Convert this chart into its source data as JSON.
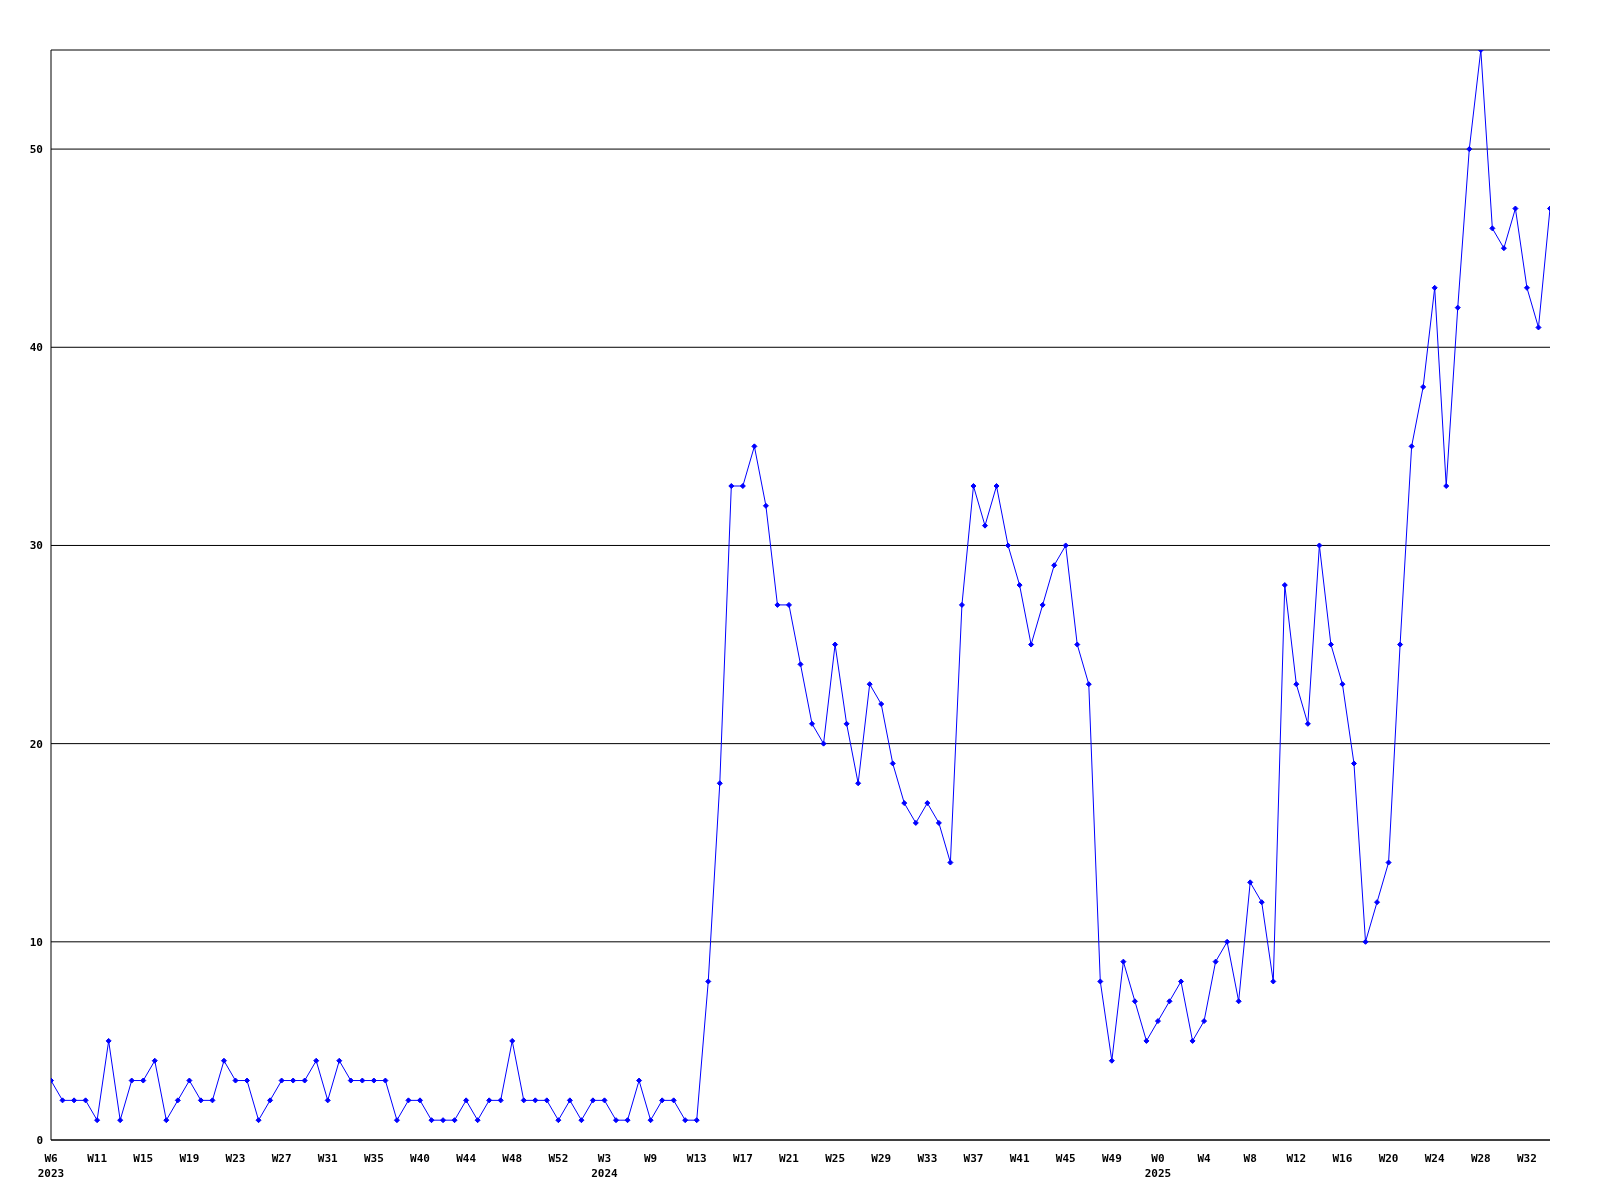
{
  "chart_data": {
    "type": "line",
    "categories": [
      "W6\n2023",
      null,
      null,
      null,
      "W11",
      null,
      null,
      null,
      "W15",
      null,
      null,
      null,
      "W19",
      null,
      null,
      null,
      "W23",
      null,
      null,
      null,
      "W27",
      null,
      null,
      null,
      "W31",
      null,
      null,
      null,
      "W35",
      null,
      null,
      null,
      "W40",
      null,
      null,
      null,
      "W44",
      null,
      null,
      null,
      "W48",
      null,
      null,
      null,
      "W52",
      null,
      null,
      null,
      "W3\n2024",
      null,
      null,
      null,
      "W9",
      null,
      null,
      null,
      "W13",
      null,
      null,
      null,
      "W17",
      null,
      null,
      null,
      "W21",
      null,
      null,
      null,
      "W25",
      null,
      null,
      null,
      "W29",
      null,
      null,
      null,
      "W33",
      null,
      null,
      null,
      "W37",
      null,
      null,
      null,
      "W41",
      null,
      null,
      null,
      "W45",
      null,
      null,
      null,
      "W49",
      null,
      null,
      null,
      "W0\n2025",
      null,
      null,
      null,
      "W4",
      null,
      null,
      null,
      "W8",
      null,
      null,
      null,
      "W12",
      null,
      null,
      null,
      "W16",
      null,
      null,
      null,
      "W20",
      null,
      null,
      null,
      "W24",
      null,
      null,
      null,
      "W28",
      null,
      null,
      null,
      "W32",
      null,
      null
    ],
    "series": [
      {
        "color": "#0000ff",
        "values": [
          3,
          2,
          2,
          2,
          1,
          5,
          1,
          3,
          3,
          4,
          1,
          2,
          3,
          2,
          2,
          4,
          3,
          3,
          1,
          2,
          3,
          3,
          3,
          4,
          2,
          4,
          3,
          3,
          3,
          3,
          1,
          2,
          2,
          1,
          1,
          1,
          2,
          1,
          2,
          2,
          5,
          2,
          2,
          2,
          1,
          2,
          1,
          2,
          2,
          1,
          1,
          3,
          1,
          2,
          2,
          1,
          1,
          8,
          18,
          33,
          33,
          35,
          32,
          27,
          27,
          24,
          21,
          20,
          25,
          21,
          18,
          23,
          22,
          19,
          17,
          16,
          17,
          16,
          14,
          27,
          33,
          31,
          33,
          30,
          28,
          25,
          27,
          29,
          30,
          25,
          23,
          8,
          4,
          9,
          7,
          5,
          6,
          7,
          8,
          5,
          6,
          9,
          10,
          7,
          13,
          12,
          8,
          28,
          23,
          21,
          30,
          25,
          23,
          19,
          10,
          12,
          14,
          25,
          35,
          38,
          43,
          33,
          42,
          50,
          55,
          46,
          45,
          47,
          43,
          41,
          47
        ]
      }
    ],
    "ylim": [
      0,
      55
    ],
    "yticks": [
      0,
      10,
      20,
      30,
      40,
      50
    ],
    "grid": "y",
    "legend": false,
    "marker": "diamond",
    "line_style": "solid"
  }
}
